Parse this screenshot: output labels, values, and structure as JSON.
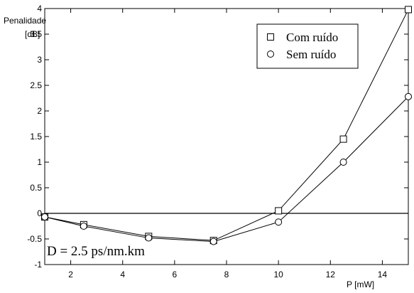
{
  "chart_data": {
    "type": "line",
    "title": "",
    "xlabel": "P [mW]",
    "ylabel_line1": "Penalidade",
    "ylabel_line2": "[dB]",
    "xlim": [
      1,
      15
    ],
    "ylim": [
      -1,
      4
    ],
    "x_ticks": [
      2,
      4,
      6,
      8,
      10,
      12,
      14
    ],
    "y_ticks": [
      -1,
      -0.5,
      0,
      0.5,
      1,
      1.5,
      2,
      2.5,
      3,
      3.5,
      4
    ],
    "x_tick_labels": [
      "2",
      "4",
      "6",
      "8",
      "10",
      "12",
      "14"
    ],
    "y_tick_labels": [
      "-1",
      "-0.5",
      "0",
      "0.5",
      "1",
      "1.5",
      "2",
      "2.5",
      "3",
      "3.5",
      "4"
    ],
    "grid": false,
    "legend_position": "top-right",
    "reference_line_y": 0,
    "annotation": "D = 2.5 ps/nm.km",
    "series": [
      {
        "name": "Com ruído",
        "marker": "square",
        "x": [
          1,
          2.5,
          5,
          7.5,
          10,
          12.5,
          15
        ],
        "values": [
          -0.07,
          -0.22,
          -0.45,
          -0.53,
          0.05,
          1.45,
          3.98
        ]
      },
      {
        "name": "Sem ruído",
        "marker": "circle",
        "x": [
          1,
          2.5,
          5,
          7.5,
          10,
          12.5,
          15
        ],
        "values": [
          -0.07,
          -0.25,
          -0.48,
          -0.55,
          -0.17,
          1.0,
          2.28
        ]
      }
    ]
  }
}
